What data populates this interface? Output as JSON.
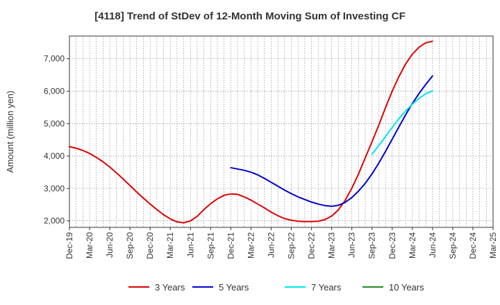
{
  "chart_data": {
    "type": "line",
    "title": "[4118]  Trend of StDev of 12-Month Moving Sum of Investing CF",
    "ylabel": "Amount (million yen)",
    "xlabel": "",
    "x_ticks": [
      "Dec-19",
      "Mar-20",
      "Jun-20",
      "Sep-20",
      "Dec-20",
      "Mar-21",
      "Jun-21",
      "Sep-21",
      "Dec-21",
      "Mar-22",
      "Jun-22",
      "Sep-22",
      "Dec-22",
      "Mar-23",
      "Jun-23",
      "Sep-23",
      "Dec-23",
      "Mar-24",
      "Jun-24",
      "Sep-24",
      "Dec-24",
      "Mar-25"
    ],
    "y_ticks": [
      "2,000",
      "3,000",
      "4,000",
      "5,000",
      "6,000",
      "7,000"
    ],
    "y_tick_values": [
      2000,
      3000,
      4000,
      5000,
      6000,
      7000
    ],
    "ylim": [
      1800,
      7700
    ],
    "grid": true,
    "legend_position": "bottom",
    "series": [
      {
        "name": "3 Years",
        "color": "#dd0000",
        "start_index": 0,
        "values": [
          4290,
          4240,
          4170,
          4080,
          3960,
          3820,
          3660,
          3480,
          3290,
          3090,
          2890,
          2700,
          2520,
          2350,
          2190,
          2060,
          1970,
          1940,
          2000,
          2140,
          2350,
          2530,
          2680,
          2790,
          2830,
          2820,
          2740,
          2640,
          2520,
          2400,
          2270,
          2160,
          2070,
          2020,
          1990,
          1980,
          1980,
          1990,
          2040,
          2150,
          2340,
          2630,
          3010,
          3450,
          3950,
          4440,
          4950,
          5490,
          6000,
          6450,
          6840,
          7140,
          7360,
          7490,
          7540
        ]
      },
      {
        "name": "5 Years",
        "color": "#0000cc",
        "start_index": 24,
        "values": [
          3640,
          3600,
          3560,
          3500,
          3420,
          3310,
          3190,
          3070,
          2950,
          2840,
          2740,
          2660,
          2580,
          2520,
          2470,
          2450,
          2480,
          2570,
          2720,
          2920,
          3160,
          3450,
          3780,
          4140,
          4520,
          4900,
          5270,
          5620,
          5930,
          6210,
          6470
        ]
      },
      {
        "name": "7 Years",
        "color": "#00e5ee",
        "start_index": 45,
        "values": [
          4060,
          4320,
          4600,
          4880,
          5150,
          5390,
          5600,
          5780,
          5920,
          6010
        ]
      },
      {
        "name": "10 Years",
        "color": "#228b22",
        "start_index": 0,
        "values": []
      }
    ]
  }
}
